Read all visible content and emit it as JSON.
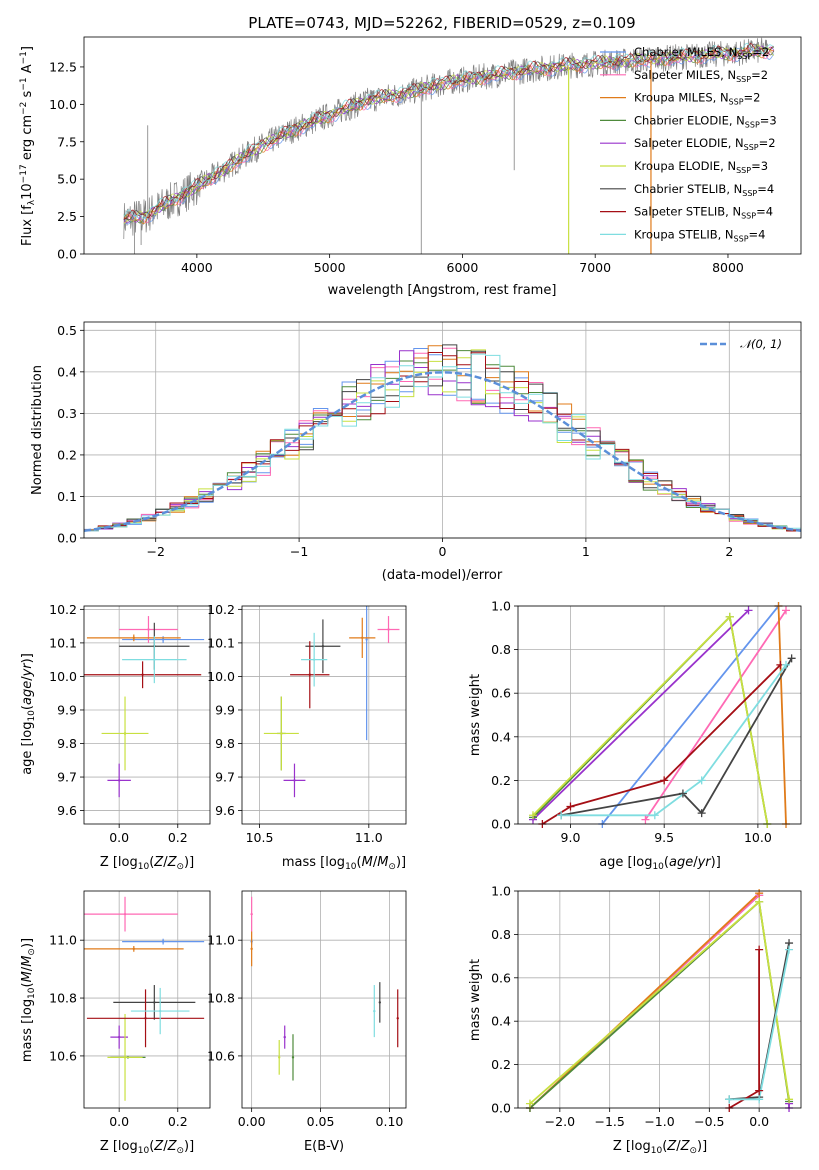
{
  "colors": {
    "chabrier_miles": "#6495ED",
    "salpeter_miles": "#FF69B4",
    "kroupa_miles": "#E07B1A",
    "chabrier_elodie": "#4E8A3B",
    "salpeter_elodie": "#9932CC",
    "kroupa_elodie": "#C8E040",
    "chabrier_stelib": "#444444",
    "salpeter_stelib": "#A50F15",
    "kroupa_stelib": "#7FDDE0",
    "normal": "#5B8FD9",
    "data": "#808080"
  },
  "chart_data": [
    {
      "type": "line",
      "title": "PLATE=0743, MJD=52262, FIBERID=0529, z=0.109",
      "xlabel": "wavelength [Angstrom, rest frame]",
      "ylabel": "Flux [f_λ10^-17 erg cm^-2 s^-1 A^-1]",
      "xlim": [
        3150,
        8550
      ],
      "ylim": [
        0,
        14.5
      ],
      "xticks": [
        4000,
        5000,
        6000,
        7000,
        8000
      ],
      "yticks": [
        0.0,
        2.5,
        5.0,
        7.5,
        10.0,
        12.5
      ],
      "legend_position": "upper right",
      "data_spectrum_approx": {
        "x": [
          3450,
          3600,
          3800,
          4000,
          4200,
          4400,
          4700,
          5000,
          5300,
          5600,
          5900,
          6200,
          6500,
          6800,
          7100,
          7400,
          7700,
          8000,
          8300
        ],
        "y": [
          2.3,
          2.5,
          3.5,
          4.5,
          5.6,
          6.8,
          8.2,
          9.3,
          10.3,
          10.8,
          11.5,
          11.9,
          12.3,
          12.6,
          12.8,
          13.0,
          13.2,
          13.4,
          13.6
        ]
      },
      "series": [
        {
          "name": "Chabrier MILES, N_SSP=2"
        },
        {
          "name": "Salpeter MILES, N_SSP=2"
        },
        {
          "name": "Kroupa MILES, N_SSP=2"
        },
        {
          "name": "Chabrier ELODIE, N_SSP=3"
        },
        {
          "name": "Salpeter ELODIE, N_SSP=2"
        },
        {
          "name": "Kroupa ELODIE, N_SSP=3"
        },
        {
          "name": "Chabrier STELIB, N_SSP=4"
        },
        {
          "name": "Salpeter STELIB, N_SSP=4"
        },
        {
          "name": "Kroupa STELIB, N_SSP=4"
        }
      ]
    },
    {
      "type": "line",
      "xlabel": "(data-model)/error",
      "ylabel": "Normed distribution",
      "xlim": [
        -2.5,
        2.5
      ],
      "ylim": [
        0,
        0.52
      ],
      "xticks": [
        -2,
        -1,
        0,
        1,
        2
      ],
      "yticks": [
        0.0,
        0.1,
        0.2,
        0.3,
        0.4,
        0.5
      ],
      "grid": true,
      "legend_label": "𝒩(0, 1)",
      "legend_position": "upper right",
      "bins_center_approx": [
        -2.45,
        -2.3,
        -2.15,
        -2.0,
        -1.85,
        -1.7,
        -1.55,
        -1.4,
        -1.25,
        -1.1,
        -0.95,
        -0.8,
        -0.65,
        -0.5,
        -0.35,
        -0.2,
        -0.05,
        0.1,
        0.25,
        0.4,
        0.55,
        0.7,
        0.85,
        1.0,
        1.15,
        1.3,
        1.45,
        1.6,
        1.75,
        1.9,
        2.05,
        2.2,
        2.35
      ],
      "histogram_mean_approx": [
        0.025,
        0.04,
        0.06,
        0.08,
        0.1,
        0.12,
        0.15,
        0.19,
        0.23,
        0.26,
        0.29,
        0.32,
        0.36,
        0.38,
        0.41,
        0.42,
        0.41,
        0.4,
        0.38,
        0.35,
        0.32,
        0.27,
        0.23,
        0.19,
        0.15,
        0.12,
        0.1,
        0.08,
        0.06,
        0.05,
        0.04,
        0.03,
        0.02
      ]
    },
    {
      "type": "scatter",
      "xlabel": "Z [log10(Z/Z⊙)]",
      "ylabel": "age  [log10(age/yr)]",
      "xlim": [
        -0.12,
        0.31
      ],
      "ylim": [
        9.56,
        10.21
      ],
      "xticks": [
        0.0,
        0.2
      ],
      "yticks": [
        9.6,
        9.7,
        9.8,
        9.9,
        10.0,
        10.1,
        10.2
      ],
      "grid": true,
      "points": [
        {
          "model": "chabrier_miles",
          "x": 0.15,
          "xerr": 0.14,
          "y": 10.11,
          "yerr": 0.01
        },
        {
          "model": "salpeter_miles",
          "x": 0.1,
          "xerr": 0.1,
          "y": 10.14,
          "yerr": 0.04
        },
        {
          "model": "kroupa_miles",
          "x": 0.05,
          "xerr": 0.16,
          "y": 10.115,
          "yerr": 0.01
        },
        {
          "model": "chabrier_elodie",
          "x": 0.02,
          "xerr": 0.0,
          "y": 9.83,
          "yerr": 0.0
        },
        {
          "model": "salpeter_elodie",
          "x": 0.0,
          "xerr": 0.04,
          "y": 9.69,
          "yerr": 0.05
        },
        {
          "model": "kroupa_elodie",
          "x": 0.02,
          "xerr": 0.08,
          "y": 9.83,
          "yerr": 0.11
        },
        {
          "model": "chabrier_stelib",
          "x": 0.12,
          "xerr": 0.12,
          "y": 10.09,
          "yerr": 0.07
        },
        {
          "model": "salpeter_stelib",
          "x": 0.08,
          "xerr": 0.2,
          "y": 10.005,
          "yerr": 0.04
        },
        {
          "model": "kroupa_stelib",
          "x": 0.12,
          "xerr": 0.11,
          "y": 10.05,
          "yerr": 0.07
        }
      ]
    },
    {
      "type": "scatter",
      "xlabel": "mass [log10(M/M⊙)]",
      "ylabel": "",
      "xlim": [
        10.42,
        11.17
      ],
      "ylim": [
        9.56,
        10.21
      ],
      "xticks": [
        10.5,
        11.0
      ],
      "yticks": [
        9.6,
        9.7,
        9.8,
        9.9,
        10.0,
        10.1,
        10.2
      ],
      "grid": true,
      "points": [
        {
          "model": "chabrier_miles",
          "x": 10.99,
          "y": 10.11,
          "yerr": 0.3
        },
        {
          "model": "salpeter_miles",
          "x": 11.09,
          "xerr": 0.05,
          "y": 10.14,
          "yerr": 0.04
        },
        {
          "model": "kroupa_miles",
          "x": 10.97,
          "xerr": 0.06,
          "y": 10.115,
          "yerr": 0.06
        },
        {
          "model": "chabrier_elodie",
          "x": 10.6,
          "xerr": 0.02,
          "y": 9.83,
          "yerr": 0.11
        },
        {
          "model": "salpeter_elodie",
          "x": 10.66,
          "xerr": 0.05,
          "y": 9.69,
          "yerr": 0.05
        },
        {
          "model": "kroupa_elodie",
          "x": 10.6,
          "xerr": 0.08,
          "y": 9.83,
          "yerr": 0.11
        },
        {
          "model": "chabrier_stelib",
          "x": 10.79,
          "xerr": 0.08,
          "y": 10.09,
          "yerr": 0.08
        },
        {
          "model": "salpeter_stelib",
          "x": 10.73,
          "xerr": 0.09,
          "y": 10.005,
          "yerr": 0.1
        },
        {
          "model": "kroupa_stelib",
          "x": 10.75,
          "xerr": 0.06,
          "y": 10.05,
          "yerr": 0.08
        }
      ]
    },
    {
      "type": "line",
      "xlabel": "age  [log10(age/yr)]",
      "ylabel": "mass weight",
      "xlim": [
        8.72,
        10.23
      ],
      "ylim": [
        0,
        1.0
      ],
      "xticks": [
        9.0,
        9.5,
        10.0
      ],
      "yticks": [
        0.0,
        0.2,
        0.4,
        0.6,
        0.8,
        1.0
      ],
      "grid": true,
      "series": [
        {
          "model": "chabrier_miles",
          "x": [
            9.17,
            10.11
          ],
          "y": [
            0.0,
            1.0
          ]
        },
        {
          "model": "salpeter_miles",
          "x": [
            9.4,
            10.15
          ],
          "y": [
            0.02,
            0.98
          ]
        },
        {
          "model": "kroupa_miles",
          "x": [
            10.11,
            10.15
          ],
          "y": [
            1.0,
            0.0
          ]
        },
        {
          "model": "chabrier_elodie",
          "x": [
            8.8,
            9.85,
            10.05
          ],
          "y": [
            0.03,
            0.95,
            0.0
          ]
        },
        {
          "model": "salpeter_elodie",
          "x": [
            8.8,
            9.95
          ],
          "y": [
            0.02,
            0.98
          ]
        },
        {
          "model": "kroupa_elodie",
          "x": [
            8.8,
            9.85,
            10.05
          ],
          "y": [
            0.04,
            0.95,
            0.0
          ]
        },
        {
          "model": "chabrier_stelib",
          "x": [
            8.95,
            9.6,
            9.7,
            10.18
          ],
          "y": [
            0.04,
            0.14,
            0.05,
            0.76
          ]
        },
        {
          "model": "salpeter_stelib",
          "x": [
            8.85,
            9.0,
            9.5,
            10.12
          ],
          "y": [
            0.0,
            0.08,
            0.2,
            0.73
          ]
        },
        {
          "model": "kroupa_stelib",
          "x": [
            8.95,
            9.45,
            9.7,
            10.15
          ],
          "y": [
            0.04,
            0.04,
            0.2,
            0.73
          ]
        }
      ]
    },
    {
      "type": "scatter",
      "xlabel": "Z [log10(Z/Z⊙)]",
      "ylabel": "mass [log10(M/M⊙)]",
      "xlim": [
        -0.12,
        0.31
      ],
      "ylim": [
        10.42,
        11.17
      ],
      "xticks": [
        0.0,
        0.2
      ],
      "yticks": [
        10.6,
        10.8,
        11.0
      ],
      "grid": true,
      "points": [
        {
          "model": "chabrier_miles",
          "x": 0.15,
          "xerr": 0.14,
          "y": 10.995,
          "yerr": 0.01
        },
        {
          "model": "salpeter_miles",
          "x": 0.02,
          "xerr": 0.18,
          "y": 11.09,
          "yerr": 0.06
        },
        {
          "model": "kroupa_miles",
          "x": 0.05,
          "xerr": 0.17,
          "y": 10.97,
          "yerr": 0.01
        },
        {
          "model": "chabrier_elodie",
          "x": 0.03,
          "xerr": 0.06,
          "y": 10.595,
          "yerr": 0.0
        },
        {
          "model": "salpeter_elodie",
          "x": 0.0,
          "xerr": 0.03,
          "y": 10.665,
          "yerr": 0.04
        },
        {
          "model": "kroupa_elodie",
          "x": 0.02,
          "xerr": 0.06,
          "y": 10.595,
          "yerr": 0.15
        },
        {
          "model": "chabrier_stelib",
          "x": 0.12,
          "xerr": 0.14,
          "y": 10.785,
          "yerr": 0.06
        },
        {
          "model": "salpeter_stelib",
          "x": 0.09,
          "xerr": 0.2,
          "y": 10.73,
          "yerr": 0.1
        },
        {
          "model": "kroupa_stelib",
          "x": 0.14,
          "xerr": 0.1,
          "y": 10.755,
          "yerr": 0.08
        }
      ]
    },
    {
      "type": "scatter",
      "xlabel": "E(B-V)",
      "ylabel": "",
      "xlim": [
        -0.007,
        0.112
      ],
      "ylim": [
        10.42,
        11.17
      ],
      "xticks": [
        0.0,
        0.05,
        0.1
      ],
      "yticks": [
        10.6,
        10.8,
        11.0
      ],
      "grid": true,
      "points": [
        {
          "model": "chabrier_miles",
          "x": 0.0,
          "y": 10.995,
          "yerr": 0.01
        },
        {
          "model": "salpeter_miles",
          "x": 0.0,
          "y": 11.09,
          "yerr": 0.06
        },
        {
          "model": "kroupa_miles",
          "x": 0.0,
          "y": 10.97,
          "yerr": 0.06
        },
        {
          "model": "chabrier_elodie",
          "x": 0.03,
          "y": 10.595,
          "yerr": 0.08
        },
        {
          "model": "salpeter_elodie",
          "x": 0.024,
          "y": 10.665,
          "yerr": 0.04
        },
        {
          "model": "kroupa_elodie",
          "x": 0.02,
          "y": 10.595,
          "yerr": 0.06
        },
        {
          "model": "chabrier_stelib",
          "x": 0.093,
          "y": 10.785,
          "yerr": 0.07
        },
        {
          "model": "salpeter_stelib",
          "x": 0.106,
          "y": 10.73,
          "yerr": 0.1
        },
        {
          "model": "kroupa_stelib",
          "x": 0.089,
          "y": 10.755,
          "yerr": 0.09
        }
      ]
    },
    {
      "type": "line",
      "xlabel": "Z [log10(Z/Z⊙)]",
      "ylabel": "mass weight",
      "xlim": [
        -2.42,
        0.42
      ],
      "ylim": [
        0,
        1.0
      ],
      "xticks": [
        -2.0,
        -1.5,
        -1.0,
        -0.5,
        0.0
      ],
      "yticks": [
        0.0,
        0.2,
        0.4,
        0.6,
        0.8,
        1.0
      ],
      "grid": true,
      "series": [
        {
          "model": "chabrier_miles",
          "x": [
            -2.3,
            0.0
          ],
          "y": [
            0.0,
            0.98
          ]
        },
        {
          "model": "salpeter_miles",
          "x": [
            -2.3,
            0.0
          ],
          "y": [
            0.0,
            0.98
          ]
        },
        {
          "model": "kroupa_miles",
          "x": [
            -2.3,
            0.0
          ],
          "y": [
            0.0,
            0.99
          ]
        },
        {
          "model": "chabrier_elodie",
          "x": [
            -2.3,
            0.0,
            0.3
          ],
          "y": [
            0.0,
            0.95,
            0.03
          ]
        },
        {
          "model": "salpeter_elodie",
          "x": [
            0.3,
            0.3
          ],
          "y": [
            0.0,
            0.02
          ]
        },
        {
          "model": "kroupa_elodie",
          "x": [
            -2.3,
            0.0,
            0.3
          ],
          "y": [
            0.02,
            0.95,
            0.04
          ]
        },
        {
          "model": "chabrier_stelib",
          "x": [
            -0.3,
            0.0,
            0.3
          ],
          "y": [
            0.04,
            0.05,
            0.76
          ]
        },
        {
          "model": "salpeter_stelib",
          "x": [
            -0.3,
            0.0,
            0.0
          ],
          "y": [
            0.0,
            0.08,
            0.73
          ]
        },
        {
          "model": "kroupa_stelib",
          "x": [
            -0.3,
            0.0,
            0.3
          ],
          "y": [
            0.04,
            0.04,
            0.73
          ]
        }
      ]
    }
  ]
}
